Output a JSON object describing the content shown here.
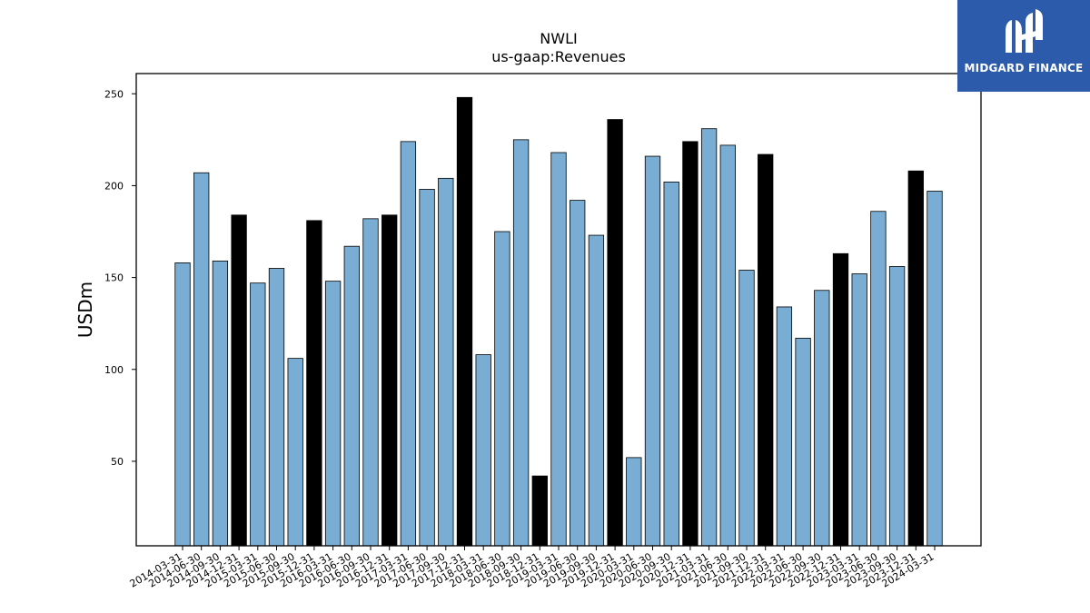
{
  "brand": {
    "name": "MIDGARD FINANCE",
    "bg_color": "#2c5bab"
  },
  "chart_data": {
    "type": "bar",
    "title": "NWLI",
    "subtitle": "us-gaap:Revenues",
    "ylabel": "USDm",
    "xlabel": "",
    "ylim": [
      4,
      261
    ],
    "yticks": [
      50,
      100,
      150,
      200,
      250
    ],
    "grid": false,
    "colors": {
      "quarter": "#7aadd3",
      "year_end": "#000000",
      "edge": "#000000"
    },
    "categories": [
      "2014-03-31",
      "2014-06-30",
      "2014-09-30",
      "2014-12-31",
      "2015-03-31",
      "2015-06-30",
      "2015-09-30",
      "2015-12-31",
      "2016-03-31",
      "2016-06-30",
      "2016-09-30",
      "2016-12-31",
      "2017-03-31",
      "2017-06-30",
      "2017-09-30",
      "2017-12-31",
      "2018-03-31",
      "2018-06-30",
      "2018-09-30",
      "2018-12-31",
      "2019-03-31",
      "2019-06-30",
      "2019-09-30",
      "2019-12-31",
      "2020-03-31",
      "2020-06-30",
      "2020-09-30",
      "2020-12-31",
      "2021-03-31",
      "2021-06-30",
      "2021-09-30",
      "2021-12-31",
      "2022-03-31",
      "2022-06-30",
      "2022-09-30",
      "2022-12-31",
      "2023-03-31",
      "2023-06-30",
      "2023-09-30",
      "2023-12-31",
      "2024-03-31"
    ],
    "values": [
      158,
      207,
      159,
      184,
      147,
      155,
      106,
      181,
      148,
      167,
      182,
      184,
      224,
      198,
      204,
      248,
      108,
      175,
      225,
      42,
      218,
      192,
      173,
      236,
      52,
      216,
      202,
      224,
      231,
      222,
      154,
      217,
      134,
      117,
      143,
      163,
      152,
      186,
      156,
      208,
      197
    ]
  }
}
